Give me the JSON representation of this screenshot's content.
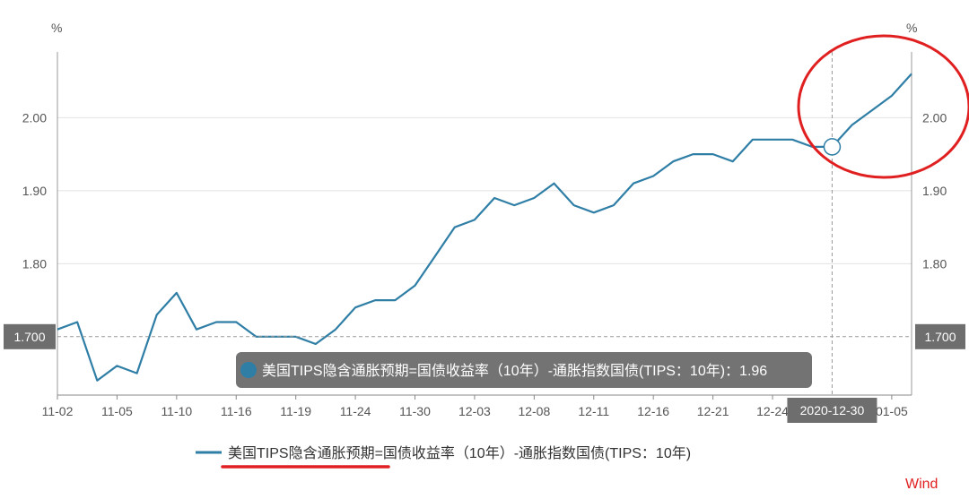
{
  "chart_data": {
    "type": "line",
    "y_unit_left": "%",
    "y_unit_right": "%",
    "yticks": [
      1.8,
      1.9,
      2.0
    ],
    "ylim": [
      1.62,
      2.09
    ],
    "x_tick_labels": [
      "11-02",
      "11-05",
      "11-10",
      "11-16",
      "11-19",
      "11-24",
      "11-30",
      "12-03",
      "12-08",
      "12-11",
      "12-16",
      "12-21",
      "12-24",
      "2020-12-30",
      "01-05"
    ],
    "series": [
      {
        "name": "美国TIPS隐含通胀预期=国债收益率（10年）-通胀指数国债(TIPS：10年)",
        "color": "#2f7ea6",
        "values": [
          1.71,
          1.72,
          1.64,
          1.66,
          1.65,
          1.73,
          1.76,
          1.71,
          1.72,
          1.72,
          1.7,
          1.7,
          1.7,
          1.69,
          1.71,
          1.74,
          1.75,
          1.75,
          1.77,
          1.81,
          1.85,
          1.86,
          1.89,
          1.88,
          1.89,
          1.91,
          1.88,
          1.87,
          1.88,
          1.91,
          1.92,
          1.94,
          1.95,
          1.95,
          1.94,
          1.97,
          1.97,
          1.97,
          1.96,
          1.96,
          1.99,
          2.01,
          2.03,
          2.06
        ]
      }
    ],
    "crosshair": {
      "y_value_label": "1.700",
      "x_value_label": "2020-12-30",
      "highlight_index": 39,
      "tooltip_text": "美国TIPS隐含通胀预期=国债收益率（10年）-通胀指数国债(TIPS：10年)：1.96"
    },
    "legend": {
      "label": "美国TIPS隐含通胀预期=国债收益率（10年）-通胀指数国债(TIPS：10年)",
      "position": "bottom-center"
    },
    "watermark": "Wind",
    "annotations": {
      "circle_color": "#e02020",
      "underline_color": "#e02020"
    }
  }
}
